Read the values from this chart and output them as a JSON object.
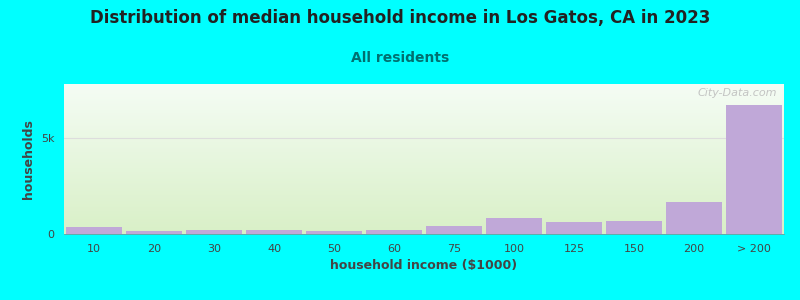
{
  "title": "Distribution of median household income in Los Gatos, CA in 2023",
  "subtitle": "All residents",
  "xlabel": "household income ($1000)",
  "ylabel": "households",
  "background_color": "#00ffff",
  "plot_bg_top": "#f5faf5",
  "plot_bg_bottom": "#d8f0c8",
  "bar_color": "#c0a8d8",
  "bar_edge_color": "#c0a8d8",
  "grid_color": "#dddddd",
  "watermark": "City-Data.com",
  "categories": [
    "10",
    "20",
    "30",
    "40",
    "50",
    "60",
    "75",
    "100",
    "125",
    "150",
    "200",
    "> 200"
  ],
  "values": [
    390,
    160,
    230,
    230,
    160,
    230,
    430,
    820,
    650,
    660,
    1650,
    6700
  ],
  "ytick_labels": [
    "0",
    "5k"
  ],
  "ytick_values": [
    0,
    5000
  ],
  "ylim": [
    0,
    7800
  ],
  "title_fontsize": 12,
  "subtitle_fontsize": 10,
  "axis_label_fontsize": 9,
  "tick_fontsize": 8,
  "title_color": "#222222",
  "subtitle_color": "#007070",
  "axis_label_color": "#444444",
  "tick_color": "#444444"
}
